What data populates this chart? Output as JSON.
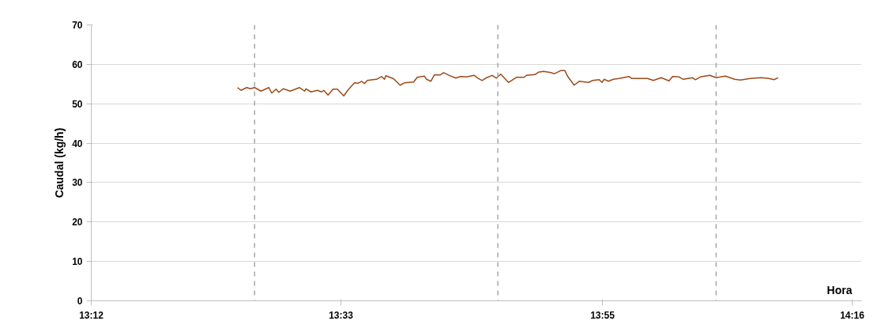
{
  "chart_data": {
    "type": "line",
    "xlabel": "Hora",
    "ylabel": "Caudal (kg/h)",
    "x": [
      13.405,
      13.41,
      13.418,
      13.423,
      13.429,
      13.438,
      13.449,
      13.453,
      13.459,
      13.463,
      13.469,
      13.479,
      13.492,
      13.499,
      13.501,
      13.508,
      13.517,
      13.523,
      13.526,
      13.532,
      13.539,
      13.545,
      13.554,
      13.56,
      13.569,
      13.574,
      13.579,
      13.583,
      13.587,
      13.595,
      13.6,
      13.607,
      13.611,
      13.613,
      13.624,
      13.633,
      13.639,
      13.652,
      13.657,
      13.667,
      13.67,
      13.676,
      13.681,
      13.689,
      13.694,
      13.702,
      13.711,
      13.718,
      13.726,
      13.737,
      13.742,
      13.748,
      13.753,
      13.762,
      13.768,
      13.774,
      13.785,
      13.796,
      13.807,
      13.81,
      13.822,
      13.827,
      13.834,
      13.844,
      13.849,
      13.858,
      13.864,
      13.868,
      13.877,
      13.884,
      13.897,
      13.903,
      13.912,
      13.916,
      13.919,
      13.925,
      13.932,
      13.94,
      13.954,
      13.958,
      13.98,
      13.988,
      13.999,
      14.01,
      14.015,
      14.024,
      14.03,
      14.043,
      14.047,
      14.054,
      14.067,
      14.076,
      14.089,
      14.102,
      14.11,
      14.124,
      14.139,
      14.15,
      14.157,
      14.163
    ],
    "series": [
      {
        "color": "#9c4a1a",
        "values": [
          54.1,
          53.4,
          54.1,
          53.8,
          54.1,
          53.2,
          54.1,
          52.7,
          53.7,
          52.9,
          53.8,
          53.2,
          54.1,
          53.2,
          53.8,
          53.0,
          53.4,
          53.0,
          53.4,
          52.2,
          53.7,
          53.7,
          52.0,
          53.5,
          55.3,
          55.2,
          55.7,
          55.1,
          55.9,
          56.1,
          56.2,
          56.9,
          56.2,
          57.1,
          56.3,
          54.7,
          55.3,
          55.5,
          56.7,
          57.0,
          56.2,
          55.7,
          57.3,
          57.3,
          57.9,
          57.2,
          56.5,
          56.9,
          56.8,
          57.2,
          56.5,
          55.9,
          56.5,
          57.2,
          56.5,
          57.5,
          55.4,
          56.7,
          56.7,
          57.2,
          57.4,
          58.0,
          58.2,
          57.9,
          57.6,
          58.4,
          58.4,
          56.9,
          54.7,
          55.7,
          55.4,
          55.9,
          56.1,
          55.4,
          56.2,
          55.7,
          56.2,
          56.4,
          56.9,
          56.4,
          56.4,
          55.9,
          56.6,
          55.8,
          56.9,
          56.8,
          56.2,
          56.6,
          56.1,
          56.8,
          57.2,
          56.6,
          57.0,
          56.2,
          56.0,
          56.4,
          56.6,
          56.4,
          56.1,
          56.6
        ]
      }
    ],
    "xlim": [
      13.2,
      14.28
    ],
    "xticks": [
      {
        "value": 13.2,
        "label": "13:12"
      },
      {
        "value": 13.55,
        "label": "13:33"
      },
      {
        "value": 13.9167,
        "label": "13:55"
      },
      {
        "value": 14.2667,
        "label": "14:16"
      }
    ],
    "ylim": [
      0,
      70
    ],
    "yticks": [
      0,
      10,
      20,
      30,
      40,
      50,
      60,
      70
    ],
    "grid": "y",
    "marker": "none",
    "line_style": "solid",
    "ref_lines": [
      {
        "axis": "x",
        "value": 13.429,
        "label": null,
        "color": "#a6a6a6",
        "line_style": "dashed"
      },
      {
        "axis": "x",
        "value": 13.77,
        "label": null,
        "color": "#a6a6a6",
        "line_style": "dashed"
      },
      {
        "axis": "x",
        "value": 14.076,
        "label": null,
        "color": "#a6a6a6",
        "line_style": "dashed"
      }
    ]
  }
}
